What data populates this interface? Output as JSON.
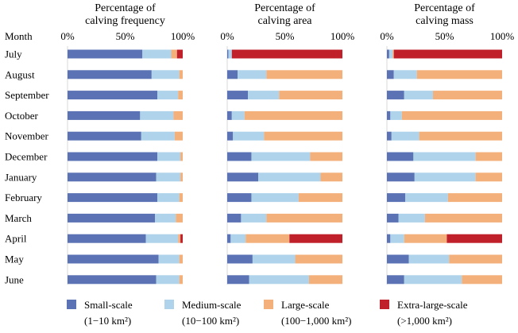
{
  "chart_data": {
    "type": "bar",
    "orientation": "horizontal",
    "stacked": "percent",
    "month_axis_label": "Month",
    "categories": [
      "July",
      "August",
      "September",
      "October",
      "November",
      "December",
      "January",
      "February",
      "March",
      "April",
      "May",
      "June"
    ],
    "x_ticks": [
      "0%",
      "50%",
      "100%"
    ],
    "xlim": [
      0,
      100
    ],
    "legend_position": "bottom",
    "series": [
      {
        "name": "Small-scale",
        "sub": "(1−10 km²)",
        "color": "#5B73B4"
      },
      {
        "name": "Medium-scale",
        "sub": "(10−100 km²)",
        "color": "#AFD3EA"
      },
      {
        "name": "Large-scale",
        "sub": "(100−1,000 km²)",
        "color": "#F4B07B"
      },
      {
        "name": "Extra-large-scale",
        "sub": "(>1,000 km²)",
        "color": "#C0202A"
      }
    ],
    "panels": [
      {
        "title_line1": "Percentage of",
        "title_line2": "calving frequency",
        "values": [
          [
            65,
            25,
            5,
            5
          ],
          [
            73,
            24,
            3,
            0
          ],
          [
            78,
            18,
            4,
            0
          ],
          [
            63,
            29,
            8,
            0
          ],
          [
            64,
            29,
            7,
            0
          ],
          [
            78,
            20,
            2,
            0
          ],
          [
            77,
            21,
            2,
            0
          ],
          [
            78,
            19,
            3,
            0
          ],
          [
            76,
            18,
            6,
            0
          ],
          [
            68,
            28,
            2,
            2
          ],
          [
            79,
            18,
            3,
            0
          ],
          [
            77,
            20,
            3,
            0
          ]
        ]
      },
      {
        "title_line1": "Percentage of",
        "title_line2": "calving area",
        "values": [
          [
            1,
            3,
            0,
            96
          ],
          [
            9,
            25,
            66,
            0
          ],
          [
            18,
            27,
            55,
            0
          ],
          [
            4,
            11,
            85,
            0
          ],
          [
            5,
            27,
            68,
            0
          ],
          [
            21,
            51,
            28,
            0
          ],
          [
            27,
            54,
            19,
            0
          ],
          [
            21,
            41,
            38,
            0
          ],
          [
            12,
            22,
            66,
            0
          ],
          [
            3,
            13,
            38,
            46
          ],
          [
            22,
            37,
            41,
            0
          ],
          [
            19,
            52,
            29,
            0
          ]
        ]
      },
      {
        "title_line1": "Percentage of",
        "title_line2": "calving mass",
        "values": [
          [
            2,
            3,
            1,
            94
          ],
          [
            6,
            20,
            74,
            0
          ],
          [
            15,
            25,
            60,
            0
          ],
          [
            3,
            10,
            87,
            0
          ],
          [
            4,
            24,
            72,
            0
          ],
          [
            23,
            54,
            23,
            0
          ],
          [
            24,
            53,
            23,
            0
          ],
          [
            16,
            37,
            47,
            0
          ],
          [
            10,
            23,
            67,
            0
          ],
          [
            3,
            12,
            37,
            48
          ],
          [
            19,
            35,
            46,
            0
          ],
          [
            15,
            50,
            35,
            0
          ]
        ]
      }
    ]
  }
}
